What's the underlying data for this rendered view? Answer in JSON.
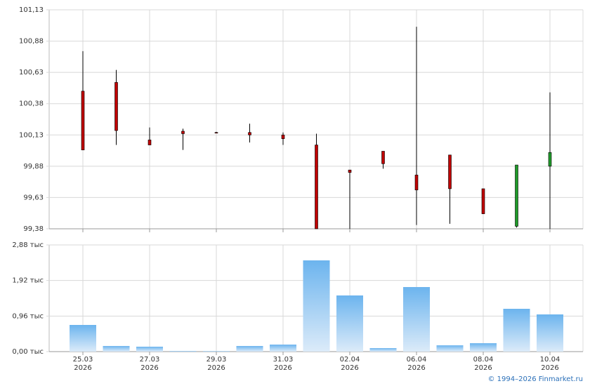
{
  "chart_data": [
    {
      "type": "candlestick",
      "open": [
        100.48,
        100.55,
        100.09,
        100.16,
        100.15,
        100.15,
        100.13,
        100.05,
        99.85,
        100.0,
        99.81,
        99.97,
        99.7,
        99.4,
        99.88
      ],
      "high": [
        100.8,
        100.65,
        100.19,
        100.18,
        100.155,
        100.22,
        100.15,
        100.14,
        99.85,
        100.0,
        100.995,
        99.97,
        99.7,
        99.89,
        100.47
      ],
      "low": [
        100.01,
        100.05,
        100.05,
        100.01,
        100.145,
        100.07,
        100.05,
        99.38,
        99.38,
        99.86,
        99.41,
        99.42,
        99.5,
        99.39,
        99.38
      ],
      "close": [
        100.01,
        100.165,
        100.05,
        100.14,
        100.15,
        100.13,
        100.1,
        99.38,
        99.83,
        99.9,
        99.69,
        99.7,
        99.5,
        99.89,
        99.99
      ],
      "up_color": "#1f9a2a",
      "down_color": "#c00000",
      "ylim": [
        99.38,
        101.13
      ],
      "yticks": [
        {
          "value": 99.38,
          "label": "99,38"
        },
        {
          "value": 99.63,
          "label": "99,63"
        },
        {
          "value": 99.88,
          "label": "99,88"
        },
        {
          "value": 100.13,
          "label": "100,13"
        },
        {
          "value": 100.38,
          "label": "100,38"
        },
        {
          "value": 100.63,
          "label": "100,63"
        },
        {
          "value": 100.88,
          "label": "100,88"
        },
        {
          "value": 101.13,
          "label": "101,13"
        }
      ],
      "grid": true
    },
    {
      "type": "bar",
      "categories": [
        "25.03\n2026",
        null,
        "27.03\n2026",
        null,
        "29.03\n2026",
        null,
        "31.03\n2026",
        null,
        "02.04\n2026",
        null,
        "06.04\n2026",
        null,
        "08.04\n2026",
        null,
        "10.04\n2026"
      ],
      "values": [
        720,
        152,
        133,
        19,
        15,
        152,
        190,
        2463,
        1516,
        95,
        1743,
        170,
        227,
        1156,
        1004
      ],
      "color": "#6cb4ee",
      "ylim": [
        0,
        2880
      ],
      "yticks": [
        {
          "value": 0,
          "label": "0,00 тыс"
        },
        {
          "value": 960,
          "label": "0,96 тыс"
        },
        {
          "value": 1920,
          "label": "1,92 тыс"
        },
        {
          "value": 2880,
          "label": "2,88 тыс"
        }
      ],
      "grid": true
    }
  ],
  "footer": "© 1994–2026 Finmarket.ru"
}
